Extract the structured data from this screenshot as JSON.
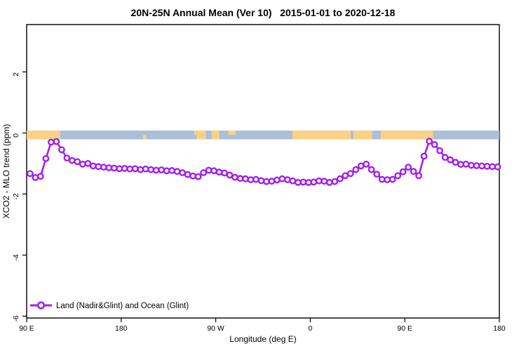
{
  "chart_data": {
    "type": "line",
    "title": "20N-25N Annual Mean (Ver 10)   2015-01-01 to 2020-12-18",
    "xlabel": "Longitude (deg E)",
    "ylabel": "XCO2 - MLO trend (ppm)",
    "xlim_deg": [
      90,
      540
    ],
    "ylim": [
      -6.06,
      3.55
    ],
    "grid": false,
    "legend_position": "bottom-left",
    "x_ticks": [
      {
        "deg": 90,
        "label": "90 E"
      },
      {
        "deg": 180,
        "label": "180"
      },
      {
        "deg": 270,
        "label": "90 W"
      },
      {
        "deg": 360,
        "label": "0"
      },
      {
        "deg": 450,
        "label": "90 E"
      },
      {
        "deg": 540,
        "label": "180"
      }
    ],
    "y_ticks": [
      {
        "value": 2,
        "label": "2"
      },
      {
        "value": 0,
        "label": "0"
      },
      {
        "value": -2,
        "label": "-2"
      },
      {
        "value": -4,
        "label": "-4"
      },
      {
        "value": -6,
        "label": "-6"
      }
    ],
    "series": [
      {
        "name": "Land (Nadir&Glint) and Ocean (Glint)",
        "color": "#A020F0",
        "marker": "open-circle",
        "x_start_deg": 93.3,
        "x_step_deg": 5,
        "values": [
          -1.33,
          -1.46,
          -1.42,
          -0.84,
          -0.3,
          -0.28,
          -0.55,
          -0.82,
          -0.9,
          -0.94,
          -1.02,
          -1.0,
          -1.08,
          -1.1,
          -1.12,
          -1.14,
          -1.15,
          -1.17,
          -1.16,
          -1.18,
          -1.17,
          -1.2,
          -1.18,
          -1.2,
          -1.22,
          -1.21,
          -1.24,
          -1.23,
          -1.26,
          -1.3,
          -1.36,
          -1.41,
          -1.43,
          -1.3,
          -1.22,
          -1.24,
          -1.28,
          -1.31,
          -1.38,
          -1.45,
          -1.49,
          -1.5,
          -1.53,
          -1.52,
          -1.56,
          -1.59,
          -1.58,
          -1.54,
          -1.5,
          -1.53,
          -1.57,
          -1.62,
          -1.61,
          -1.62,
          -1.61,
          -1.57,
          -1.58,
          -1.62,
          -1.59,
          -1.5,
          -1.4,
          -1.33,
          -1.2,
          -1.08,
          -1.02,
          -1.2,
          -1.35,
          -1.52,
          -1.53,
          -1.52,
          -1.4,
          -1.27,
          -1.12,
          -1.26,
          -1.4,
          -0.76,
          -0.27,
          -0.38,
          -0.58,
          -0.8,
          -0.88,
          -0.96,
          -1.03,
          -1.02,
          -1.06,
          -1.07,
          -1.08,
          -1.09,
          -1.1,
          -1.11
        ]
      }
    ],
    "surface_strip": {
      "y_center": 0,
      "ocean_color": "#AABFD8",
      "land_color": "#FAD185",
      "land_segments_deg": [
        {
          "from": 90,
          "to": 122,
          "part": "full"
        },
        {
          "from": 200.5,
          "to": 204,
          "part": "bottom"
        },
        {
          "from": 249.5,
          "to": 252,
          "part": "top"
        },
        {
          "from": 252,
          "to": 260.5,
          "part": "full"
        },
        {
          "from": 266,
          "to": 273.5,
          "part": "full"
        },
        {
          "from": 282,
          "to": 289,
          "part": "top"
        },
        {
          "from": 343,
          "to": 398.5,
          "part": "full"
        },
        {
          "from": 401,
          "to": 419,
          "part": "full"
        },
        {
          "from": 427,
          "to": 477,
          "part": "full"
        }
      ]
    }
  }
}
